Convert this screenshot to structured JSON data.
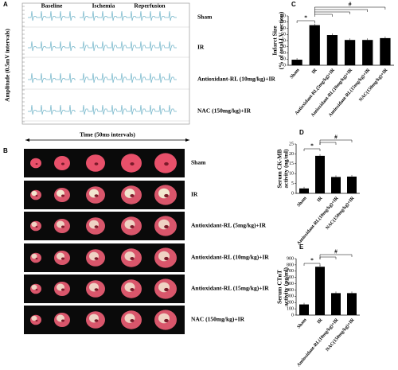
{
  "panel_a": {
    "panel": "A",
    "columns": [
      "Baseline",
      "Ischemia",
      "Reperfusion"
    ],
    "rows": [
      "Sham",
      "IR",
      "Antioxidant-RL (10mg/kg)+IR",
      "NAC (150mg/kg)+IR"
    ],
    "ylabel": "Amplitude (0.5mV intervals)",
    "xlabel": "Time (50ms intervals)"
  },
  "panel_b": {
    "panel": "B",
    "rows": [
      "Sham",
      "IR",
      "Antioxidant-RL (5mg/kg)+IR",
      "Antioxidant-RL (10mg/kg)+IR",
      "Antioxidant-RL (15mg/kg)+IR",
      "NAC (150mg/kg)+IR"
    ]
  },
  "chart_data": [
    {
      "type": "bar",
      "panel": "C",
      "ylabel": [
        "Infarct Size",
        "(% of total LV section)"
      ],
      "categories": [
        "Sham",
        "IR",
        "Antioxidant-RL(5mg/kg)+IR",
        "Antioxidant-RL(10mg/kg)+IR",
        "Antioxidant-RL(15mg/kg)+IR",
        "NAC(150mg/kg)+IR"
      ],
      "values": [
        9,
        65,
        49,
        41,
        41,
        44
      ],
      "color": "#000000",
      "ylim": [
        0,
        80
      ],
      "yticks": [
        0,
        10,
        20,
        30,
        40,
        50,
        60,
        70,
        80
      ],
      "annotations": [
        "*",
        "#"
      ]
    },
    {
      "type": "bar",
      "panel": "D",
      "ylabel": [
        "Serum CK-MB",
        "activity (ng/ml)"
      ],
      "categories": [
        "Sham",
        "IR",
        "Antioxidant-RL(10mg/kg)+IR",
        "NAC(150mg/kg)+IR"
      ],
      "values": [
        2.5,
        19,
        8.3,
        8.5
      ],
      "color": "#000000",
      "ylim": [
        0,
        25
      ],
      "yticks": [
        0,
        5,
        10,
        15,
        20,
        25
      ],
      "annotations": [
        "*",
        "#"
      ]
    },
    {
      "type": "bar",
      "panel": "E",
      "ylabel": [
        "Serum CTnT",
        "activity (pg/ml)"
      ],
      "categories": [
        "Sham",
        "IR",
        "Antioxidant-RL(10mg/kg)+IR",
        "NAC(150mg/kg)+IR"
      ],
      "values": [
        170,
        770,
        350,
        350
      ],
      "color": "#000000",
      "ylim": [
        0,
        900
      ],
      "yticks": [
        0,
        100,
        200,
        300,
        400,
        500,
        600,
        700,
        800,
        900
      ],
      "annotations": [
        "*",
        "#"
      ]
    }
  ]
}
